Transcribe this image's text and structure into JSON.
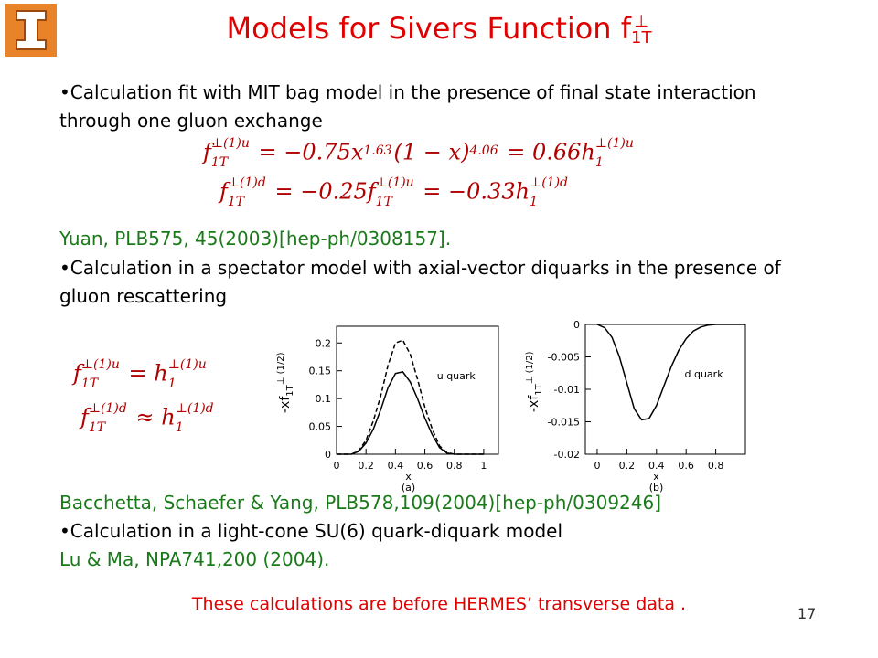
{
  "title": {
    "text": "Models for Sivers Function f",
    "sub": "1T",
    "sup": "⊥"
  },
  "slide_number": "17",
  "blocks": [
    {
      "text": "•Calculation fit with MIT bag model in the presence of final state interaction through one gluon exchange",
      "color": "#000000",
      "top": 86
    },
    {
      "text": "Yuan, PLB575, 45(2003)[hep-ph/0308157].",
      "color": "#1a7a1a",
      "top": 246
    },
    {
      "text": "•Calculation in a spectator model with axial-vector diquarks in the presence of gluon rescattering",
      "color": "#000000",
      "top": 278
    },
    {
      "text": "Bacchetta, Schaefer & Yang, PLB578,109(2004)[hep-ph/0309246]",
      "color": "#1a7a1a",
      "top": 535
    },
    {
      "text": "•Calculation in a light-cone SU(6) quark-diquark model",
      "color": "#000000",
      "top": 566
    },
    {
      "text": "Lu & Ma, NPA741,200 (2004).",
      "color": "#1a7a1a",
      "top": 597
    }
  ],
  "footer": "These calculations are before HERMES’ transverse data .",
  "equations": [
    {
      "segments": [
        {
          "text": "f",
          "sub": "1T",
          "sup": "⊥(1)u"
        },
        {
          "text": " = −0.75x"
        },
        {
          "text": "",
          "sup": "1.63"
        },
        {
          "text": "(1 − x)"
        },
        {
          "text": "",
          "sup": "4.06"
        },
        {
          "text": " = 0.66h"
        },
        {
          "text": "",
          "sub": "1",
          "sup": "⊥(1)u"
        }
      ]
    },
    {
      "segments": [
        {
          "text": "f",
          "sub": "1T",
          "sup": "⊥(1)d"
        },
        {
          "text": " = −0.25f"
        },
        {
          "text": "",
          "sub": "1T",
          "sup": "⊥(1)u"
        },
        {
          "text": " = −0.33h"
        },
        {
          "text": "",
          "sub": "1",
          "sup": "⊥(1)d"
        }
      ]
    },
    {
      "segments": [
        {
          "text": "f",
          "sub": "1T",
          "sup": "⊥(1)u"
        },
        {
          "text": " = h"
        },
        {
          "text": "",
          "sub": "1",
          "sup": "⊥(1)u"
        }
      ]
    },
    {
      "segments": [
        {
          "text": "f",
          "sub": "1T",
          "sup": "⊥(1)d"
        },
        {
          "text": " ≈ h"
        },
        {
          "text": "",
          "sub": "1",
          "sup": "⊥(1)d"
        }
      ]
    }
  ],
  "plots": [
    {
      "type": "line",
      "annotation": "u quark",
      "x_label": "x",
      "panel_label": "(a)",
      "y_label": {
        "text": "-xf",
        "sub": "1T",
        "sup": "⊥ (1/2)"
      },
      "xlim": [
        0,
        1.1
      ],
      "ylim": [
        0,
        0.23
      ],
      "xticks": [
        0,
        0.2,
        0.4,
        0.6,
        0.8,
        1
      ],
      "yticks": [
        0,
        0.05,
        0.1,
        0.15,
        0.2
      ],
      "x": [
        0,
        0.05,
        0.1,
        0.15,
        0.2,
        0.25,
        0.3,
        0.35,
        0.4,
        0.45,
        0.5,
        0.55,
        0.6,
        0.65,
        0.7,
        0.75,
        0.8,
        0.85,
        0.9,
        0.95,
        1
      ],
      "series": [
        {
          "color": "#000000",
          "style": "solid",
          "values": [
            0,
            0,
            0,
            0.005,
            0.02,
            0.045,
            0.08,
            0.12,
            0.145,
            0.148,
            0.13,
            0.1,
            0.065,
            0.035,
            0.012,
            0.002,
            0,
            0,
            0,
            0,
            0
          ]
        },
        {
          "color": "#000000",
          "style": "dashed",
          "values": [
            0,
            0,
            0,
            0.006,
            0.025,
            0.06,
            0.105,
            0.16,
            0.2,
            0.205,
            0.18,
            0.135,
            0.085,
            0.045,
            0.015,
            0.003,
            0,
            0,
            0,
            0,
            0
          ]
        }
      ]
    },
    {
      "type": "line",
      "annotation": "d quark",
      "x_label": "x",
      "panel_label": "(b)",
      "y_label": {
        "text": "-xf",
        "sub": "1T",
        "sup": "⊥ (1/2)"
      },
      "xlim": [
        -0.08,
        1.0
      ],
      "ylim": [
        -0.02,
        0
      ],
      "xticks": [
        0,
        0.2,
        0.4,
        0.6,
        0.8
      ],
      "yticks": [
        0,
        -0.005,
        -0.01,
        -0.015,
        -0.02
      ],
      "x": [
        0,
        0.05,
        0.1,
        0.15,
        0.2,
        0.25,
        0.3,
        0.35,
        0.4,
        0.45,
        0.5,
        0.55,
        0.6,
        0.65,
        0.7,
        0.75,
        0.8,
        0.85,
        0.9,
        0.95,
        1
      ],
      "series": [
        {
          "color": "#000000",
          "style": "solid",
          "values": [
            0,
            -0.0005,
            -0.002,
            -0.005,
            -0.009,
            -0.013,
            -0.0147,
            -0.0145,
            -0.0125,
            -0.0095,
            -0.0065,
            -0.004,
            -0.0022,
            -0.001,
            -0.0004,
            -0.0001,
            0,
            0,
            0,
            0,
            0
          ]
        }
      ]
    }
  ]
}
